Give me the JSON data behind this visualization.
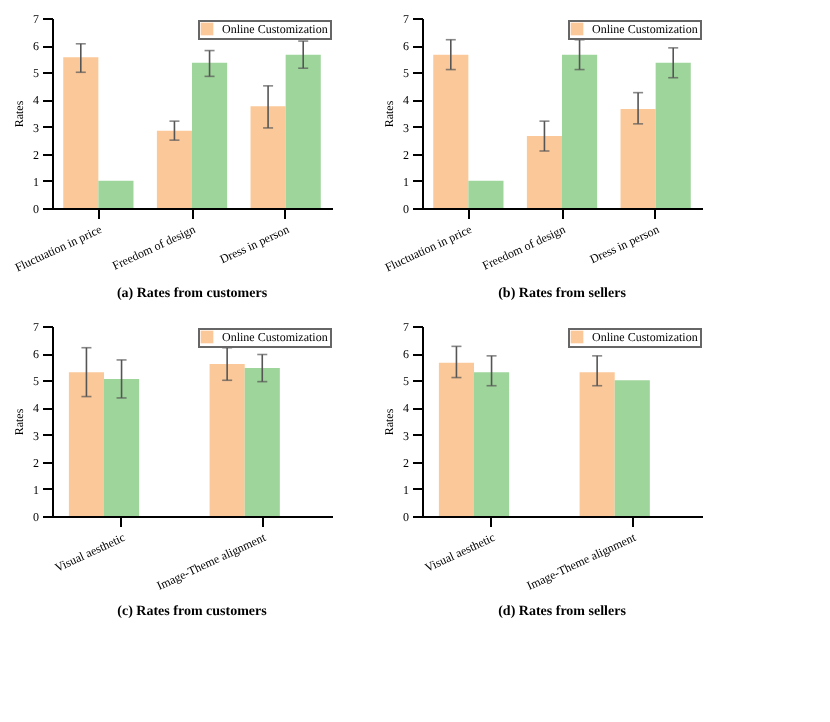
{
  "chart_data": [
    {
      "type": "bar",
      "title": "(a) Rates from customers",
      "ylabel": "Rates",
      "categories": [
        "Fluctuation in price",
        "Freedom of design",
        "Dress in person"
      ],
      "ylim": [
        0,
        7
      ],
      "yticks": [
        0,
        1,
        2,
        3,
        4,
        5,
        6,
        7
      ],
      "grid": false,
      "legend": "top right",
      "series": [
        {
          "name": "Online Customization",
          "color": "#fbc899",
          "values": [
            5.55,
            2.85,
            3.75
          ],
          "errors": [
            [
              5.0,
              6.05
            ],
            [
              2.5,
              3.2
            ],
            [
              2.95,
              4.5
            ]
          ]
        },
        {
          "color": "#9ed59a",
          "values": [
            1.0,
            5.35,
            5.65
          ],
          "errors": [
            null,
            [
              4.85,
              5.8
            ],
            [
              5.15,
              6.15
            ]
          ]
        }
      ]
    },
    {
      "type": "bar",
      "title": "(b) Rates from sellers",
      "ylabel": "Rates",
      "categories": [
        "Fluctuation in price",
        "Freedom of design",
        "Dress in person"
      ],
      "ylim": [
        0,
        7
      ],
      "yticks": [
        0,
        1,
        2,
        3,
        4,
        5,
        6,
        7
      ],
      "grid": false,
      "legend": "top right",
      "series": [
        {
          "name": "Online Customization",
          "color": "#fbc899",
          "values": [
            5.65,
            2.65,
            3.65
          ],
          "errors": [
            [
              5.1,
              6.2
            ],
            [
              2.1,
              3.2
            ],
            [
              3.1,
              4.25
            ]
          ]
        },
        {
          "color": "#9ed59a",
          "values": [
            1.0,
            5.65,
            5.35
          ],
          "errors": [
            null,
            [
              5.1,
              6.2
            ],
            [
              4.8,
              5.9
            ]
          ]
        }
      ]
    },
    {
      "type": "bar",
      "title": "(c) Rates from customers",
      "ylabel": "Rates",
      "categories": [
        "Visual aesthetic",
        "Image-Theme alignment"
      ],
      "ylim": [
        0,
        7
      ],
      "yticks": [
        0,
        1,
        2,
        3,
        4,
        5,
        6,
        7
      ],
      "grid": false,
      "legend": "top right",
      "series": [
        {
          "name": "Online Customization",
          "color": "#fbc899",
          "values": [
            5.3,
            5.6
          ],
          "errors": [
            [
              4.4,
              6.2
            ],
            [
              5.0,
              6.2
            ]
          ]
        },
        {
          "color": "#9ed59a",
          "values": [
            5.05,
            5.45
          ],
          "errors": [
            [
              4.35,
              5.75
            ],
            [
              4.95,
              5.95
            ]
          ]
        }
      ]
    },
    {
      "type": "bar",
      "title": "(d) Rates from sellers",
      "ylabel": "Rates",
      "categories": [
        "Visual aesthetic",
        "Image-Theme alignment"
      ],
      "ylim": [
        0,
        7
      ],
      "yticks": [
        0,
        1,
        2,
        3,
        4,
        5,
        6,
        7
      ],
      "grid": false,
      "legend": "top right",
      "series": [
        {
          "name": "Online Customization",
          "color": "#fbc899",
          "values": [
            5.65,
            5.3
          ],
          "errors": [
            [
              5.1,
              6.25
            ],
            [
              4.8,
              5.9
            ]
          ]
        },
        {
          "color": "#9ed59a",
          "values": [
            5.3,
            5.0
          ],
          "errors": [
            [
              4.8,
              5.9
            ],
            null
          ]
        }
      ]
    }
  ]
}
